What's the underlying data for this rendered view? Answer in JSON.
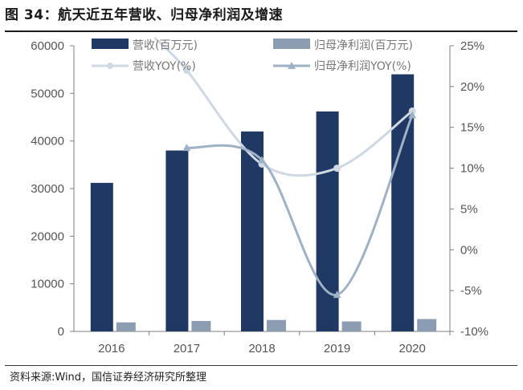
{
  "title": "图 34：航天近五年营收、归母净利润及增速",
  "source": "资料来源:Wind，国信证券经济研究所整理",
  "colors": {
    "revenue": "#1f3864",
    "profit": "#8d9db1",
    "revenue_yoy": "#cfd8e3",
    "profit_yoy": "#9fb1c5"
  },
  "chart_data": {
    "type": "bar+line",
    "categories": [
      "2016",
      "2017",
      "2018",
      "2019",
      "2020"
    ],
    "series": [
      {
        "name": "营收(百万元)",
        "kind": "bar",
        "axis": "left",
        "values": [
          31200,
          38000,
          42000,
          46200,
          54000
        ]
      },
      {
        "name": "归母净利润(百万元)",
        "kind": "bar",
        "axis": "left",
        "values": [
          1900,
          2200,
          2400,
          2100,
          2600
        ]
      },
      {
        "name": "营收YOY(%)",
        "kind": "line",
        "axis": "right",
        "values": [
          null,
          22.0,
          10.5,
          10.0,
          17.0
        ]
      },
      {
        "name": "归母净利润YOY(%)",
        "kind": "line",
        "axis": "right",
        "values": [
          null,
          12.5,
          11.0,
          -5.5,
          16.5
        ]
      }
    ],
    "left_axis": {
      "ylim": [
        0,
        60000
      ],
      "ticks": [
        "0",
        "10000",
        "20000",
        "30000",
        "40000",
        "50000",
        "60000"
      ]
    },
    "right_axis": {
      "ylim": [
        -10,
        25
      ],
      "ticks": [
        "-10%",
        "-5%",
        "0%",
        "5%",
        "10%",
        "15%",
        "20%",
        "25%"
      ]
    },
    "legend": [
      "营收(百万元)",
      "归母净利润(百万元)",
      "营收YOY(%)",
      "归母净利润YOY(%)"
    ]
  }
}
